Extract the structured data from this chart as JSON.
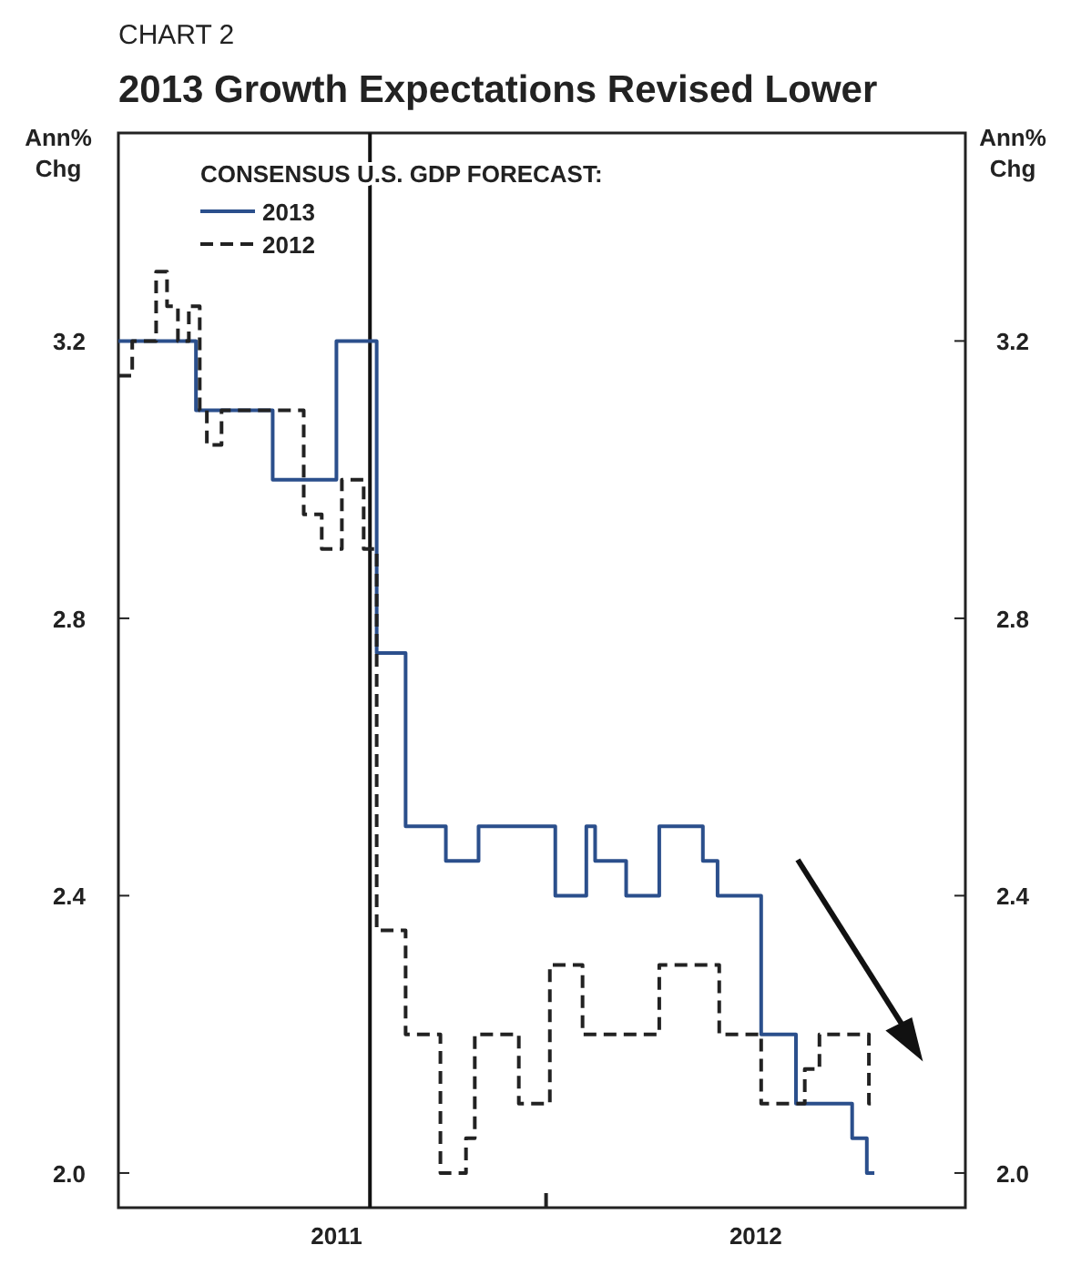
{
  "chart_data": {
    "type": "step",
    "title": "2013 Growth Expectations Revised Lower",
    "subtitle": "CHART 2",
    "ylabel": "Ann% Chg",
    "y2label": "Ann% Chg",
    "legend_title": "CONSENSUS U.S. GDP FORECAST:",
    "legend": "top left",
    "grid": false,
    "xlim": [
      2010.98,
      2013.0
    ],
    "xticks": [
      {
        "value": 2011.5,
        "label": "2011"
      },
      {
        "value": 2012,
        "label": null
      },
      {
        "value": 2012.5,
        "label": "2012"
      }
    ],
    "ylim": [
      1.95,
      3.5
    ],
    "yticks": [
      {
        "value": 2,
        "label": "2.0"
      },
      {
        "value": 2.4,
        "label": "2.4"
      },
      {
        "value": 2.8,
        "label": "2.8"
      },
      {
        "value": 3.2,
        "label": "3.2"
      }
    ],
    "y2lim": [
      1.95,
      3.5
    ],
    "y2ticks": [
      {
        "value": 2,
        "label": "2.0"
      },
      {
        "value": 2.4,
        "label": "2.4"
      },
      {
        "value": 2.8,
        "label": "2.8"
      },
      {
        "value": 3.2,
        "label": "3.2"
      }
    ],
    "ref_lines": [
      {
        "axis": "x",
        "value": 2011.58,
        "color": "#111111"
      }
    ],
    "series": [
      {
        "name": "2013",
        "color": "#2b4f8c",
        "line_style": "solid",
        "x": [
          2010.98,
          2011.165,
          2011.348,
          2011.5,
          2011.596,
          2011.665,
          2011.761,
          2011.839,
          2012.022,
          2012.096,
          2012.117,
          2012.191,
          2012.27,
          2012.374,
          2012.409,
          2012.513,
          2012.596,
          2012.73,
          2012.765,
          2012.783
        ],
        "values": [
          3.2,
          3.1,
          3.0,
          3.2,
          2.75,
          2.5,
          2.45,
          2.5,
          2.4,
          2.5,
          2.45,
          2.4,
          2.5,
          2.45,
          2.4,
          2.2,
          2.1,
          2.05,
          2.0,
          2.0
        ]
      },
      {
        "name": "2012",
        "color": "#222222",
        "line_style": "dashed",
        "x": [
          2010.98,
          2011.013,
          2011.07,
          2011.096,
          2011.122,
          2011.148,
          2011.174,
          2011.191,
          2011.226,
          2011.422,
          2011.465,
          2011.513,
          2011.565,
          2011.596,
          2011.665,
          2011.748,
          2011.809,
          2011.83,
          2011.935,
          2012.009,
          2012.087,
          2012.27,
          2012.413,
          2012.513,
          2012.617,
          2012.652,
          2012.77,
          2012.783
        ],
        "values": [
          3.15,
          3.2,
          3.3,
          3.25,
          3.2,
          3.25,
          3.1,
          3.05,
          3.1,
          2.95,
          2.9,
          3.0,
          2.9,
          2.35,
          2.2,
          2.0,
          2.05,
          2.2,
          2.1,
          2.3,
          2.2,
          2.3,
          2.2,
          2.1,
          2.15,
          2.2,
          2.1,
          2.1
        ]
      }
    ]
  }
}
